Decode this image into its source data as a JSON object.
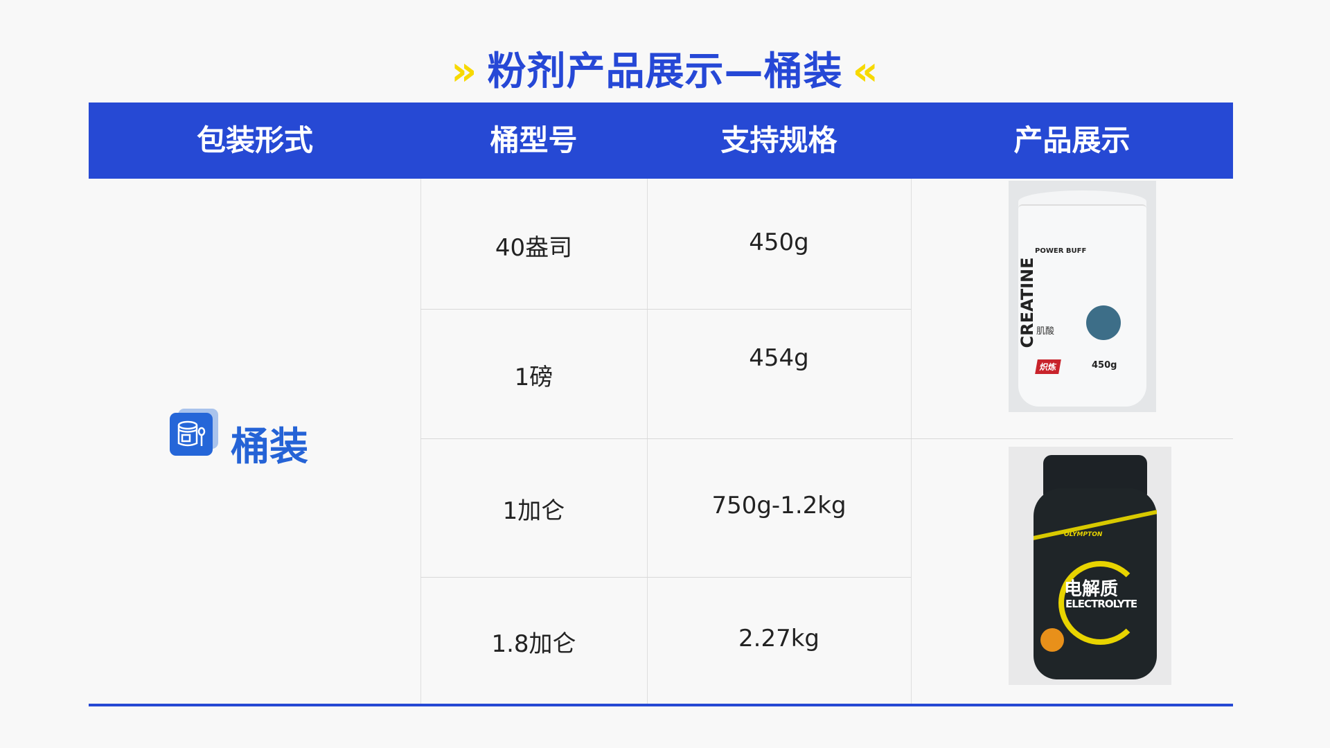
{
  "title": {
    "text": "粉剂产品展示—桶装",
    "left_glyph": "»",
    "right_glyph": "«"
  },
  "colors": {
    "brand_blue": "#2649d4",
    "accent_yellow": "#f7d900",
    "label_blue": "#2563d6"
  },
  "table": {
    "headers": [
      "包装形式",
      "桶型号",
      "支持规格",
      "产品展示"
    ],
    "package_type": {
      "label": "桶装",
      "icon": "barrel-spoon-icon"
    },
    "rows": [
      {
        "model": "40盎司",
        "spec": "450g"
      },
      {
        "model": "1磅",
        "spec": "454g"
      },
      {
        "model": "1加仑",
        "spec": "750g-1.2kg"
      },
      {
        "model": "1.8加仑",
        "spec": "2.27kg"
      }
    ],
    "products": [
      {
        "name": "CREATINE",
        "brand": "POWER BUFF",
        "cn_name": "肌酸",
        "net": "450g",
        "tag": "炽炼"
      },
      {
        "name": "ELECTROLYTE",
        "brand": "OLYMPTON",
        "cn_name": "电解质"
      }
    ]
  }
}
